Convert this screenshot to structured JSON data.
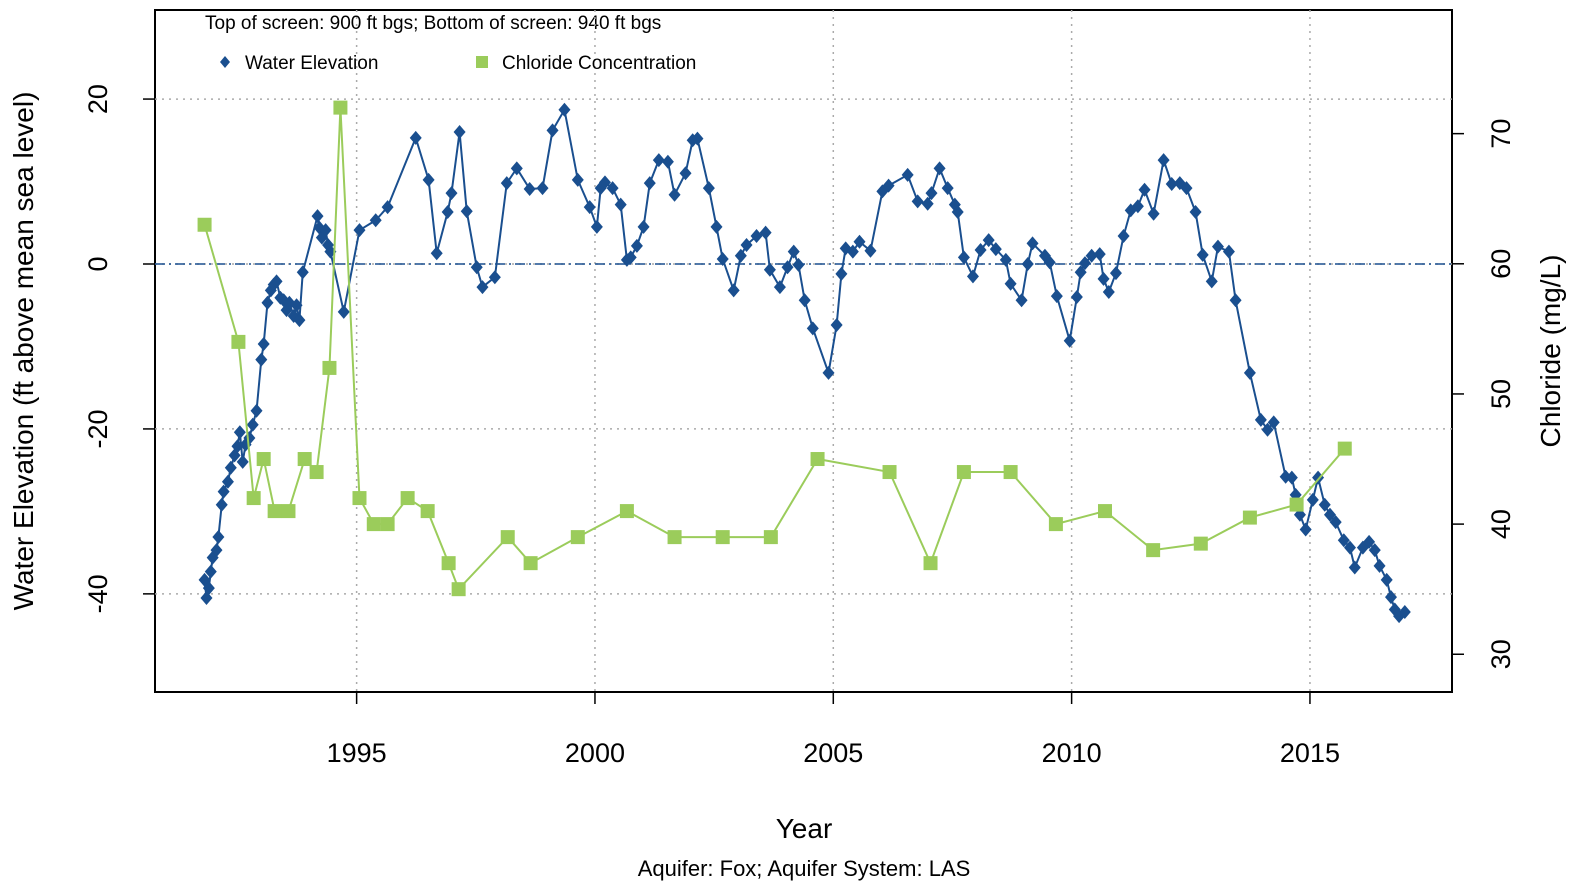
{
  "chart_data": {
    "type": "line",
    "annotation": "Top of screen: 900 ft bgs; Bottom of screen: 940 ft bgs",
    "x_label": "Year",
    "subtitle": "Aquifer: Fox; Aquifer System: LAS",
    "y_label": "Water Elevation (ft above mean sea level)",
    "y2_label": "Chloride (mg/L)",
    "xlim": [
      1990.77,
      2017.98
    ],
    "xticks": [
      1995,
      2000,
      2005,
      2010,
      2015
    ],
    "ylim": [
      -51.9,
      30.8
    ],
    "yticks": [
      -40,
      -20,
      0,
      20
    ],
    "y2lim": [
      27.1,
      79.5
    ],
    "y2ticks": [
      30,
      40,
      50,
      60,
      70
    ],
    "grid": true,
    "reference_line": 0,
    "series": [
      {
        "name": "Water Elevation",
        "color": "#1a4f8f",
        "marker": "diamond",
        "x": [
          1991.81,
          1991.85,
          1991.9,
          1991.94,
          1991.98,
          1992.06,
          1992.1,
          1992.17,
          1992.21,
          1992.3,
          1992.36,
          1992.44,
          1992.5,
          1992.55,
          1992.61,
          1992.67,
          1992.75,
          1992.82,
          1992.9,
          1993.0,
          1993.05,
          1993.13,
          1993.2,
          1993.26,
          1993.32,
          1993.4,
          1993.47,
          1993.53,
          1993.59,
          1993.68,
          1993.74,
          1993.8,
          1993.87,
          1994.18,
          1994.22,
          1994.27,
          1994.35,
          1994.4,
          1994.45,
          1994.73,
          1995.06,
          1995.4,
          1995.65,
          1996.24,
          1996.51,
          1996.68,
          1996.91,
          1996.99,
          1997.16,
          1997.31,
          1997.52,
          1997.64,
          1997.9,
          1998.15,
          1998.36,
          1998.63,
          1998.9,
          1999.11,
          1999.36,
          1999.64,
          1999.89,
          2000.04,
          2000.12,
          2000.21,
          2000.37,
          2000.54,
          2000.67,
          2000.75,
          2000.88,
          2001.02,
          2001.15,
          2001.34,
          2001.53,
          2001.67,
          2001.9,
          2002.05,
          2002.15,
          2002.39,
          2002.55,
          2002.68,
          2002.91,
          2003.06,
          2003.18,
          2003.39,
          2003.58,
          2003.67,
          2003.88,
          2004.04,
          2004.17,
          2004.27,
          2004.4,
          2004.57,
          2004.9,
          2005.07,
          2005.17,
          2005.26,
          2005.41,
          2005.55,
          2005.78,
          2006.03,
          2006.16,
          2006.56,
          2006.77,
          2006.98,
          2007.06,
          2007.23,
          2007.4,
          2007.55,
          2007.61,
          2007.74,
          2007.93,
          2008.09,
          2008.26,
          2008.41,
          2008.62,
          2008.72,
          2008.95,
          2009.08,
          2009.18,
          2009.44,
          2009.54,
          2009.69,
          2009.96,
          2010.11,
          2010.19,
          2010.28,
          2010.42,
          2010.59,
          2010.67,
          2010.78,
          2010.93,
          2011.09,
          2011.24,
          2011.39,
          2011.53,
          2011.72,
          2011.93,
          2012.1,
          2012.27,
          2012.41,
          2012.6,
          2012.75,
          2012.94,
          2013.07,
          2013.3,
          2013.44,
          2013.74,
          2013.97,
          2014.11,
          2014.24,
          2014.49,
          2014.62,
          2014.7,
          2014.79,
          2014.91,
          2015.06,
          2015.17,
          2015.31,
          2015.42,
          2015.54,
          2015.71,
          2015.84,
          2015.94,
          2016.11,
          2016.24,
          2016.36,
          2016.46,
          2016.61,
          2016.7,
          2016.78,
          2016.87,
          2016.99
        ],
        "values": [
          -38.3,
          -40.5,
          -39.3,
          -37.3,
          -35.6,
          -34.7,
          -33.1,
          -29.2,
          -27.6,
          -26.4,
          -24.7,
          -23.2,
          -22.1,
          -20.4,
          -24,
          -21.9,
          -21.1,
          -19.5,
          -17.8,
          -11.6,
          -9.7,
          -4.7,
          -3.2,
          -2.5,
          -2.1,
          -4.1,
          -4.4,
          -5.6,
          -4.7,
          -6.3,
          -5,
          -6.8,
          -1,
          5.8,
          4.4,
          3.2,
          4.1,
          2.3,
          1.5,
          -5.8,
          4.1,
          5.3,
          6.9,
          15.3,
          10.2,
          1.3,
          6.3,
          8.6,
          16,
          6.4,
          -0.4,
          -2.8,
          -1.6,
          9.8,
          11.6,
          9.1,
          9.2,
          16.2,
          18.7,
          10.2,
          6.9,
          4.5,
          9.2,
          9.9,
          9.2,
          7.2,
          0.5,
          0.8,
          2.2,
          4.5,
          9.8,
          12.6,
          12.4,
          8.4,
          11,
          15,
          15.2,
          9.2,
          4.5,
          0.6,
          -3.2,
          1,
          2.3,
          3.4,
          3.8,
          -0.7,
          -2.8,
          -0.4,
          1.5,
          -0.1,
          -4.4,
          -7.8,
          -13.2,
          -7.4,
          -1.2,
          1.9,
          1.5,
          2.7,
          1.6,
          8.8,
          9.5,
          10.8,
          7.6,
          7.3,
          8.6,
          11.6,
          9.2,
          7.2,
          6.3,
          0.8,
          -1.5,
          1.7,
          2.9,
          1.8,
          0.5,
          -2.4,
          -4.4,
          0,
          2.5,
          1,
          0.2,
          -3.9,
          -9.3,
          -4,
          -1,
          0.1,
          1,
          1.2,
          -1.8,
          -3.4,
          -1.1,
          3.4,
          6.5,
          7,
          9,
          6.1,
          12.6,
          9.7,
          9.8,
          9.2,
          6.3,
          1.1,
          -2.1,
          2.1,
          1.5,
          -4.4,
          -13.2,
          -18.9,
          -20.1,
          -19.2,
          -25.8,
          -25.9,
          -28,
          -30.4,
          -32.2,
          -28.6,
          -25.9,
          -29.2,
          -30.4,
          -31.3,
          -33.5,
          -34.4,
          -36.8,
          -34.4,
          -33.7,
          -34.7,
          -36.6,
          -38.3,
          -40.4,
          -41.9,
          -42.7,
          -42.2
        ]
      },
      {
        "name": "Chloride Concentration",
        "color": "#9bcc5b",
        "marker": "square",
        "axis": "y2",
        "x": [
          1991.81,
          1992.52,
          1992.84,
          1993.05,
          1993.28,
          1993.57,
          1993.91,
          1994.16,
          1994.43,
          1994.66,
          1995.06,
          1995.36,
          1995.65,
          1996.07,
          1996.49,
          1996.93,
          1997.14,
          1998.17,
          1998.65,
          1999.64,
          2000.67,
          2001.67,
          2002.68,
          2003.69,
          2004.67,
          2006.18,
          2007.04,
          2007.74,
          2008.72,
          2009.67,
          2010.7,
          2011.71,
          2012.71,
          2013.74,
          2014.72,
          2015.73
        ],
        "values": [
          63,
          54,
          42,
          45,
          41,
          41,
          45,
          44,
          52,
          72,
          42,
          40,
          40,
          42,
          41,
          37,
          35,
          39,
          37,
          39,
          41,
          39,
          39,
          39,
          45,
          44,
          37,
          44,
          44,
          40,
          41,
          38,
          38.5,
          40.5,
          41.5,
          45.8
        ]
      }
    ]
  }
}
